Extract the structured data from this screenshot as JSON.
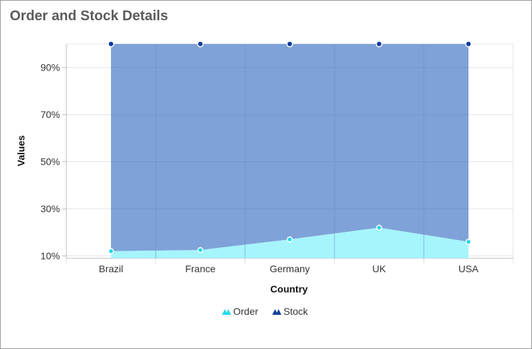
{
  "title": "Order and Stock Details",
  "colors": {
    "order": "#1fd9ec",
    "order_fill": "#a6f4fc",
    "stock": "#0f3d9c",
    "stock_fill": "#7fa2d8"
  },
  "chart_data": {
    "type": "area",
    "stacked": "100%",
    "title": "Order and Stock Details",
    "xlabel": "Country",
    "ylabel": "Values",
    "categories": [
      "Brazil",
      "France",
      "Germany",
      "UK",
      "USA"
    ],
    "y_ticks": [
      "10%",
      "30%",
      "50%",
      "70%",
      "90%"
    ],
    "y_tick_values": [
      10,
      30,
      50,
      70,
      90
    ],
    "ylim": [
      9,
      100
    ],
    "grid": true,
    "legend": "bottom-center",
    "series": [
      {
        "name": "Order",
        "key": "order",
        "values": [
          12,
          12.5,
          17,
          22,
          16
        ]
      },
      {
        "name": "Stock",
        "key": "stock",
        "values": [
          100,
          100,
          100,
          100,
          100
        ]
      }
    ]
  }
}
